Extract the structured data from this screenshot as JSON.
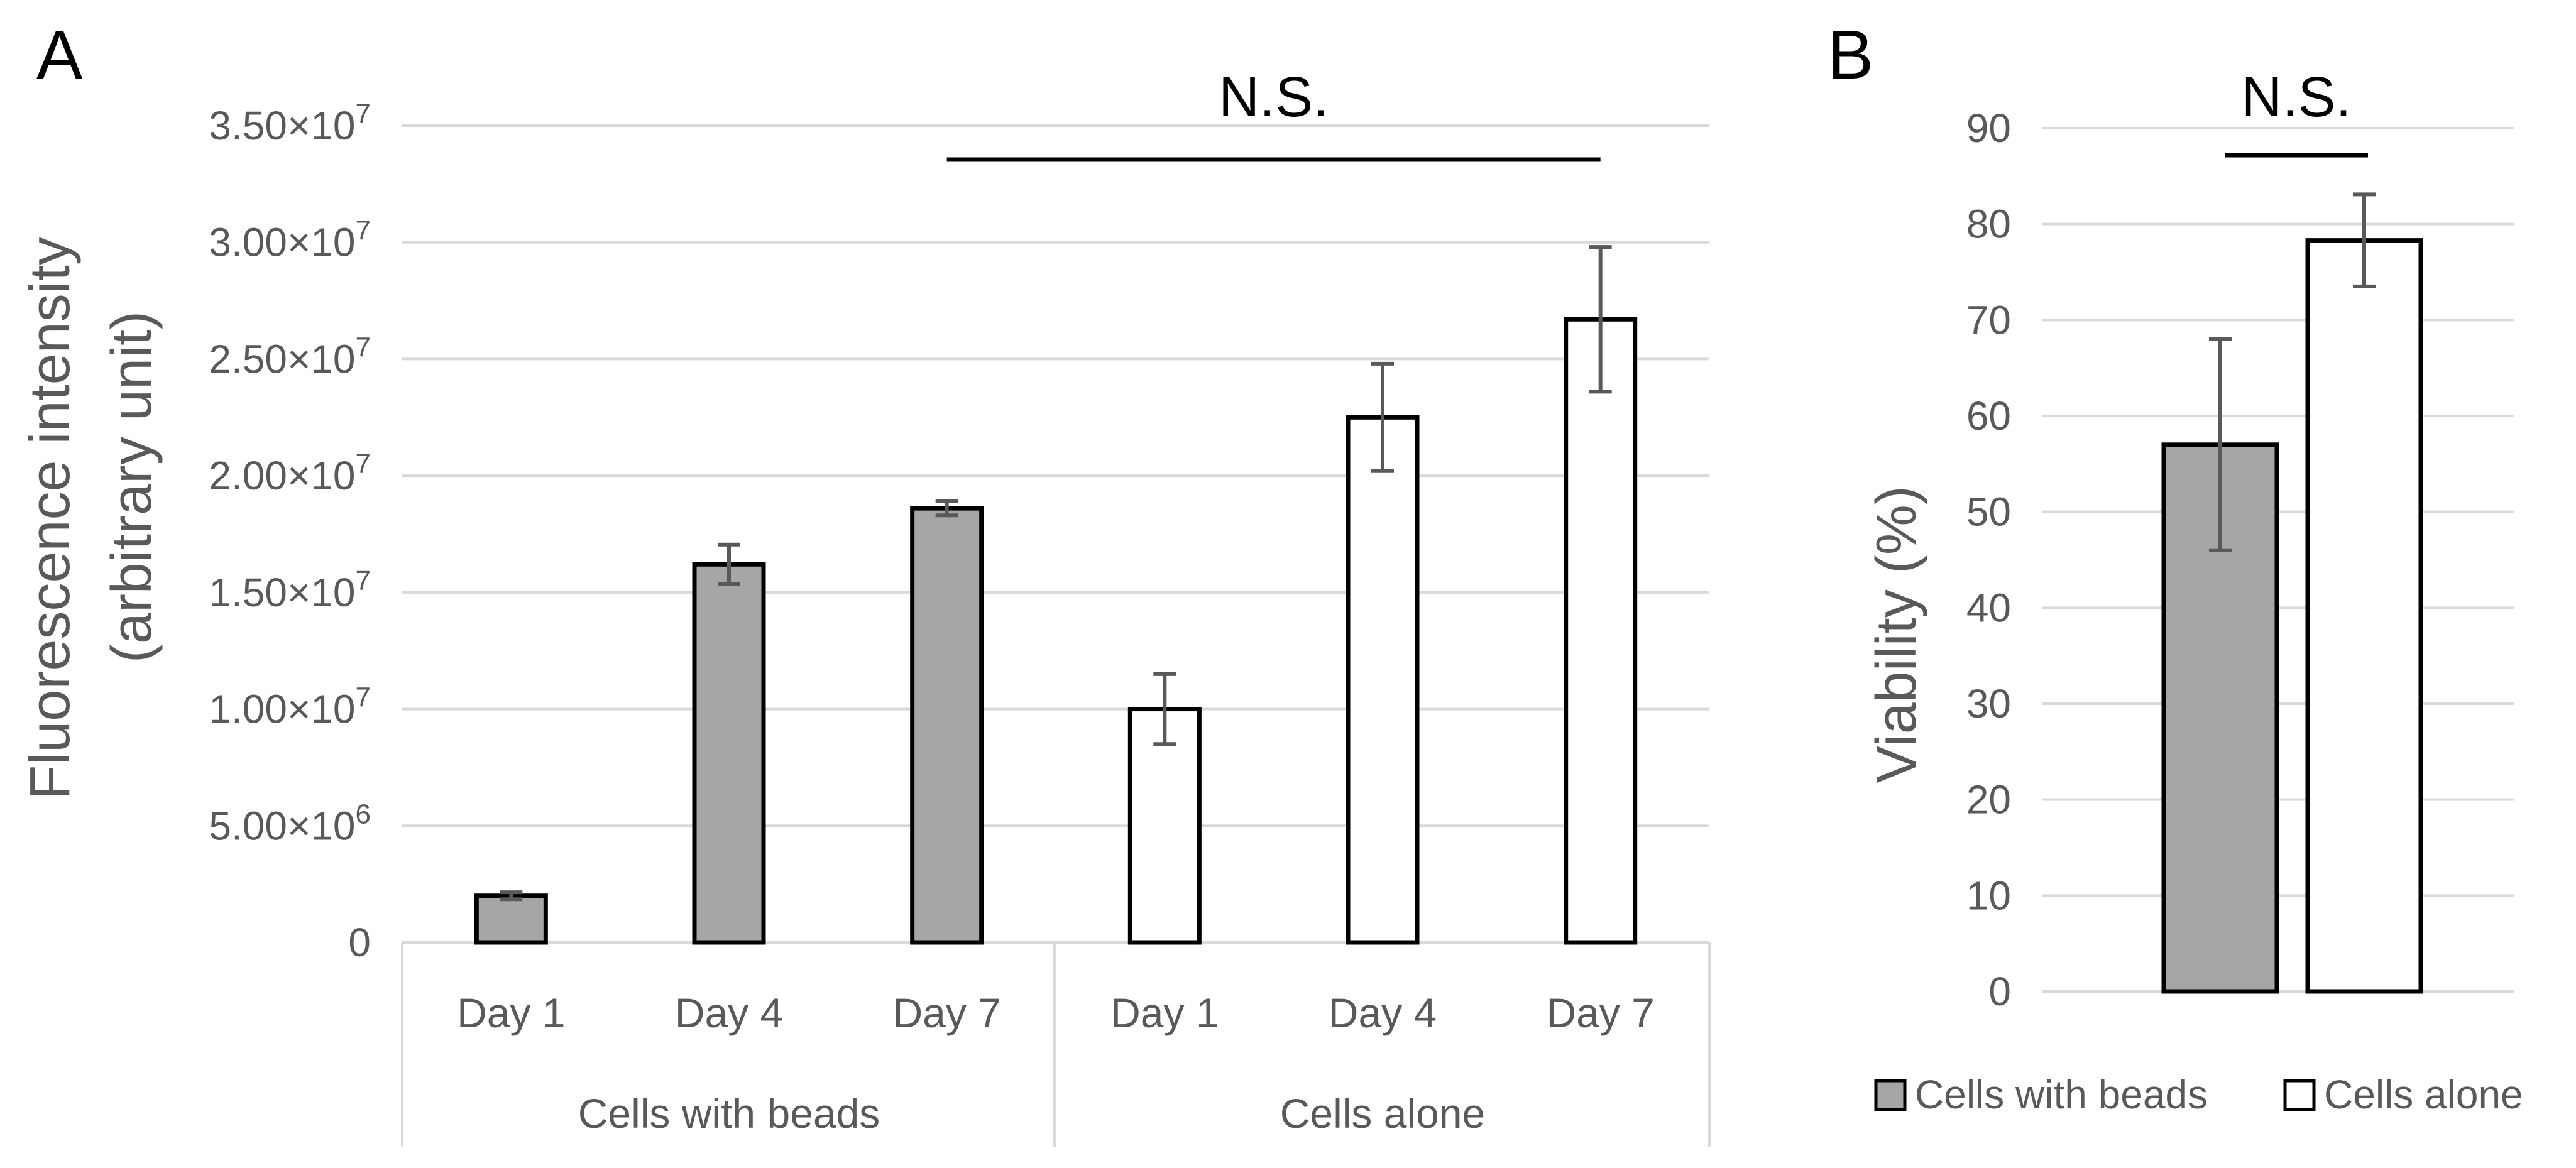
{
  "chart_data": [
    {
      "panel": "A",
      "type": "bar",
      "ylabel_line1": "Fluorescence intensity",
      "ylabel_line2": "(arbitrary unit)",
      "ylim": [
        0,
        35000000
      ],
      "y_ticks": [
        {
          "value": 0,
          "label": "0"
        },
        {
          "value": 5000000,
          "label": "5.00",
          "exp": "6"
        },
        {
          "value": 10000000,
          "label": "1.00",
          "exp": "7"
        },
        {
          "value": 15000000,
          "label": "1.50",
          "exp": "7"
        },
        {
          "value": 20000000,
          "label": "2.00",
          "exp": "7"
        },
        {
          "value": 25000000,
          "label": "2.50",
          "exp": "7"
        },
        {
          "value": 30000000,
          "label": "3.00",
          "exp": "7"
        },
        {
          "value": 35000000,
          "label": "3.50",
          "exp": "7"
        }
      ],
      "times_sign": "×10",
      "groups": [
        {
          "name": "Cells with beads",
          "categories": [
            "Day 1",
            "Day 4",
            "Day 7"
          ],
          "color": "#a6a6a6",
          "values": [
            2000000,
            16200000,
            18600000
          ],
          "errors": [
            150000,
            850000,
            300000
          ]
        },
        {
          "name": "Cells alone",
          "categories": [
            "Day 1",
            "Day 4",
            "Day 7"
          ],
          "color": "#ffffff",
          "values": [
            10000000,
            22500000,
            26700000
          ],
          "errors": [
            1500000,
            2300000,
            3100000
          ]
        }
      ],
      "significance": {
        "label": "N.S.",
        "from_index": 2,
        "to_index": 5
      }
    },
    {
      "panel": "B",
      "type": "bar",
      "ylabel": "Viability (%)",
      "ylim": [
        0,
        90
      ],
      "y_ticks": [
        0,
        10,
        20,
        30,
        40,
        50,
        60,
        70,
        80,
        90
      ],
      "series": [
        {
          "name": "Cells with beads",
          "color": "#a6a6a6",
          "value": 57,
          "error": 11
        },
        {
          "name": "Cells alone",
          "color": "#ffffff",
          "value": 78.3,
          "error": 4.8
        }
      ],
      "significance": {
        "label": "N.S."
      },
      "legend_position": "bottom"
    }
  ]
}
